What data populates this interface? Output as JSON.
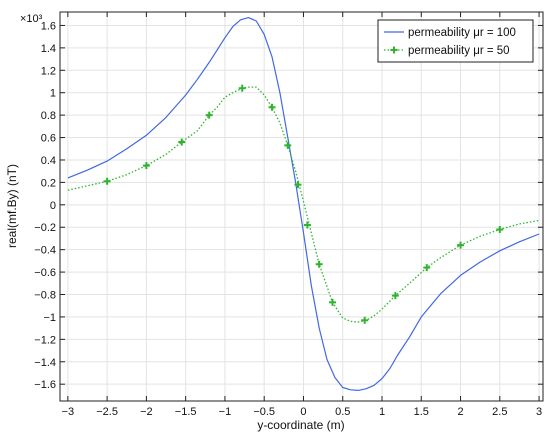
{
  "chart_data": {
    "type": "line",
    "title": "",
    "xlabel": "y-coordinate (m)",
    "ylabel": "real(mf.By) (nT)",
    "y_multiplier_label": "×10³",
    "xlim": [
      -3.1,
      3.05
    ],
    "ylim": [
      -1.75,
      1.72
    ],
    "x_ticks": [
      -3,
      -2.5,
      -2,
      -1.5,
      -1,
      -0.5,
      0,
      0.5,
      1,
      1.5,
      2,
      2.5,
      3
    ],
    "x_tick_labels": [
      "−3",
      "−2.5",
      "−2",
      "−1.5",
      "−1",
      "−0.5",
      "0",
      "0.5",
      "1",
      "1.5",
      "2",
      "2.5",
      "3"
    ],
    "y_ticks": [
      -1.6,
      -1.4,
      -1.2,
      -1,
      -0.8,
      -0.6,
      -0.4,
      -0.2,
      0,
      0.2,
      0.4,
      0.6,
      0.8,
      1,
      1.2,
      1.4,
      1.6
    ],
    "y_tick_labels": [
      "−1.6",
      "−1.4",
      "−1.2",
      "−1",
      "−0.8",
      "−0.6",
      "−0.4",
      "−0.2",
      "0",
      "0.2",
      "0.4",
      "0.6",
      "0.8",
      "1",
      "1.2",
      "1.4",
      "1.6"
    ],
    "grid": true,
    "legend_position": "top-right",
    "series": [
      {
        "name": "permeability μr = 100",
        "color": "#4169e1",
        "line_style": "solid",
        "marker": "none",
        "x": [
          -3,
          -2.75,
          -2.5,
          -2.25,
          -2,
          -1.75,
          -1.5,
          -1.35,
          -1.2,
          -1.1,
          -1.0,
          -0.9,
          -0.8,
          -0.7,
          -0.6,
          -0.5,
          -0.4,
          -0.3,
          -0.2,
          -0.1,
          0,
          0.1,
          0.2,
          0.3,
          0.4,
          0.5,
          0.6,
          0.7,
          0.8,
          0.9,
          1.0,
          1.1,
          1.2,
          1.35,
          1.5,
          1.75,
          2.0,
          2.25,
          2.5,
          2.75,
          3.0
        ],
        "y": [
          0.24,
          0.31,
          0.39,
          0.5,
          0.62,
          0.78,
          0.98,
          1.12,
          1.27,
          1.38,
          1.49,
          1.59,
          1.65,
          1.67,
          1.64,
          1.52,
          1.32,
          1.0,
          0.6,
          0.2,
          -0.25,
          -0.72,
          -1.1,
          -1.38,
          -1.54,
          -1.63,
          -1.65,
          -1.655,
          -1.64,
          -1.61,
          -1.55,
          -1.46,
          -1.34,
          -1.18,
          -1.0,
          -0.79,
          -0.63,
          -0.51,
          -0.41,
          -0.33,
          -0.26
        ]
      },
      {
        "name": "permeability μr = 50",
        "color": "#2db52d",
        "line_style": "dotted",
        "marker": "plus",
        "x": [
          -3,
          -2.75,
          -2.5,
          -2.25,
          -2,
          -1.75,
          -1.55,
          -1.35,
          -1.2,
          -1.1,
          -1.0,
          -0.9,
          -0.78,
          -0.7,
          -0.6,
          -0.5,
          -0.4,
          -0.3,
          -0.2,
          -0.1,
          0,
          0.1,
          0.2,
          0.37,
          0.5,
          0.6,
          0.7,
          0.8,
          0.9,
          1.0,
          1.17,
          1.35,
          1.57,
          1.75,
          2.0,
          2.25,
          2.5,
          2.75,
          3.0
        ],
        "y": [
          0.13,
          0.17,
          0.21,
          0.27,
          0.35,
          0.45,
          0.56,
          0.66,
          0.8,
          0.87,
          0.96,
          1.0,
          1.04,
          1.05,
          1.05,
          0.98,
          0.87,
          0.73,
          0.53,
          0.3,
          0.03,
          -0.25,
          -0.53,
          -0.87,
          -1.01,
          -1.04,
          -1.045,
          -1.03,
          -0.99,
          -0.93,
          -0.81,
          -0.7,
          -0.56,
          -0.47,
          -0.36,
          -0.28,
          -0.22,
          -0.17,
          -0.14
        ],
        "marker_x": [
          -2.5,
          -2,
          -1.55,
          -1.2,
          -0.78,
          -0.4,
          -0.2,
          -0.07,
          0.05,
          0.2,
          0.37,
          0.78,
          1.17,
          1.57,
          2.0,
          2.5
        ],
        "marker_y": [
          0.21,
          0.35,
          0.56,
          0.8,
          1.04,
          0.87,
          0.53,
          0.18,
          -0.18,
          -0.53,
          -0.87,
          -1.03,
          -0.81,
          -0.56,
          -0.36,
          -0.22
        ]
      }
    ]
  }
}
